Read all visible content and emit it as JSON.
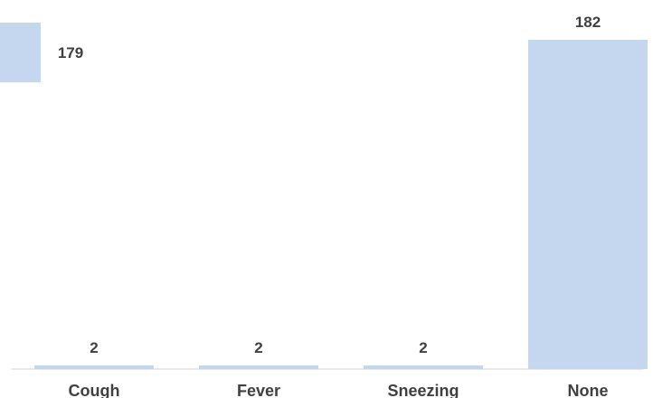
{
  "colors": {
    "bar": "#c5d7ef",
    "axis": "#d0d0d0",
    "text": "#404040"
  },
  "chart_data": {
    "type": "bar",
    "categories": [
      "Cough",
      "Fever",
      "Sneezing",
      "None"
    ],
    "values": [
      2,
      2,
      2,
      182
    ],
    "ylim": [
      0,
      182
    ],
    "grid": false,
    "legend": "none",
    "annotations": [
      {
        "category": "Cough",
        "value": 179
      }
    ]
  }
}
